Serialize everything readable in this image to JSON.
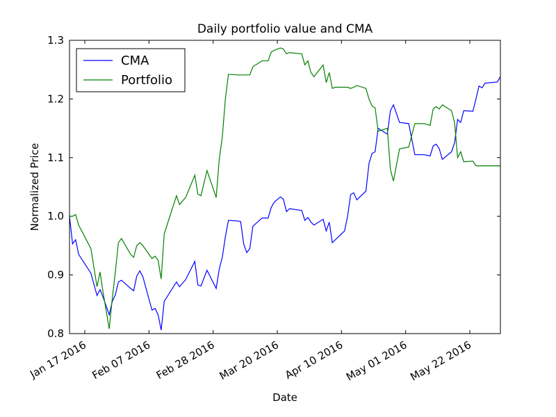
{
  "chart_data": {
    "type": "line",
    "title": "Daily portfolio value and CMA",
    "x_label": "Date",
    "y_label": "Normalized Price",
    "x": [
      "2016-01-12",
      "2016-01-13",
      "2016-01-14",
      "2016-01-15",
      "2016-01-19",
      "2016-01-21",
      "2016-01-22",
      "2016-01-23",
      "2016-01-25",
      "2016-01-26",
      "2016-01-27",
      "2016-01-28",
      "2016-01-29",
      "2016-02-01",
      "2016-02-02",
      "2016-02-03",
      "2016-02-04",
      "2016-02-05",
      "2016-02-08",
      "2016-02-09",
      "2016-02-10",
      "2016-02-11",
      "2016-02-12",
      "2016-02-16",
      "2016-02-17",
      "2016-02-19",
      "2016-02-22",
      "2016-02-23",
      "2016-02-24",
      "2016-02-26",
      "2016-02-29",
      "2016-03-01",
      "2016-03-02",
      "2016-03-03",
      "2016-03-04",
      "2016-03-07",
      "2016-03-08",
      "2016-03-09",
      "2016-03-10",
      "2016-03-11",
      "2016-03-12",
      "2016-03-15",
      "2016-03-17",
      "2016-03-18",
      "2016-03-19",
      "2016-03-21",
      "2016-03-22",
      "2016-03-23",
      "2016-03-24",
      "2016-03-28",
      "2016-03-29",
      "2016-03-30",
      "2016-03-31",
      "2016-04-01",
      "2016-04-04",
      "2016-04-05",
      "2016-04-06",
      "2016-04-07",
      "2016-04-08",
      "2016-04-11",
      "2016-04-12",
      "2016-04-13",
      "2016-04-14",
      "2016-04-15",
      "2016-04-18",
      "2016-04-19",
      "2016-04-20",
      "2016-04-21",
      "2016-04-22",
      "2016-04-25",
      "2016-04-26",
      "2016-04-27",
      "2016-04-29",
      "2016-05-02",
      "2016-05-04",
      "2016-05-07",
      "2016-05-09",
      "2016-05-10",
      "2016-05-11",
      "2016-05-12",
      "2016-05-13",
      "2016-05-16",
      "2016-05-17",
      "2016-05-18",
      "2016-05-19",
      "2016-05-20",
      "2016-05-23",
      "2016-05-24",
      "2016-05-25",
      "2016-05-26",
      "2016-05-27",
      "2016-05-31",
      "2016-06-01"
    ],
    "series": [
      {
        "name": "CMA",
        "color": "#0000ff",
        "values": [
          1.0,
          0.953,
          0.96,
          0.935,
          0.903,
          0.865,
          0.875,
          0.862,
          0.832,
          0.855,
          0.866,
          0.888,
          0.891,
          0.877,
          0.873,
          0.898,
          0.907,
          0.897,
          0.84,
          0.843,
          0.832,
          0.806,
          0.855,
          0.888,
          0.88,
          0.892,
          0.923,
          0.883,
          0.881,
          0.908,
          0.877,
          0.91,
          0.93,
          0.965,
          0.993,
          0.992,
          0.991,
          0.953,
          0.938,
          0.945,
          0.983,
          0.997,
          0.997,
          1.015,
          1.024,
          1.033,
          1.029,
          1.008,
          1.013,
          1.01,
          0.993,
          0.998,
          0.99,
          0.985,
          0.995,
          0.975,
          0.99,
          0.955,
          0.96,
          0.975,
          1.0,
          1.037,
          1.04,
          1.028,
          1.043,
          1.09,
          1.107,
          1.11,
          1.15,
          1.14,
          1.18,
          1.19,
          1.16,
          1.158,
          1.105,
          1.105,
          1.103,
          1.12,
          1.123,
          1.115,
          1.097,
          1.11,
          1.125,
          1.165,
          1.16,
          1.18,
          1.179,
          1.2,
          1.222,
          1.219,
          1.227,
          1.229,
          1.238
        ]
      },
      {
        "name": "Portfolio",
        "color": "#008000",
        "values": [
          1.0,
          1.0,
          1.003,
          0.985,
          0.945,
          0.88,
          0.905,
          0.87,
          0.808,
          0.86,
          0.905,
          0.955,
          0.962,
          0.935,
          0.93,
          0.95,
          0.955,
          0.95,
          0.928,
          0.932,
          0.925,
          0.893,
          0.97,
          1.035,
          1.02,
          1.032,
          1.07,
          1.038,
          1.035,
          1.078,
          1.032,
          1.097,
          1.135,
          1.2,
          1.242,
          1.241,
          1.241,
          1.241,
          1.241,
          1.241,
          1.255,
          1.265,
          1.265,
          1.28,
          1.283,
          1.287,
          1.285,
          1.277,
          1.279,
          1.277,
          1.258,
          1.265,
          1.245,
          1.238,
          1.258,
          1.228,
          1.245,
          1.218,
          1.22,
          1.22,
          1.22,
          1.218,
          1.22,
          1.223,
          1.218,
          1.2,
          1.188,
          1.185,
          1.145,
          1.15,
          1.08,
          1.06,
          1.115,
          1.118,
          1.158,
          1.158,
          1.155,
          1.183,
          1.187,
          1.183,
          1.19,
          1.18,
          1.16,
          1.1,
          1.11,
          1.093,
          1.094,
          1.086,
          1.086,
          1.086,
          1.086,
          1.086,
          1.086
        ]
      }
    ],
    "xlim": [
      "2016-01-12",
      "2016-06-01"
    ],
    "xticks": [
      {
        "value": "2016-01-17",
        "label": "Jan 17 2016"
      },
      {
        "value": "2016-02-07",
        "label": "Feb 07 2016"
      },
      {
        "value": "2016-02-28",
        "label": "Feb 28 2016"
      },
      {
        "value": "2016-03-20",
        "label": "Mar 20 2016"
      },
      {
        "value": "2016-04-10",
        "label": "Apr 10 2016"
      },
      {
        "value": "2016-05-01",
        "label": "May 01 2016"
      },
      {
        "value": "2016-05-22",
        "label": "May 22 2016"
      }
    ],
    "ylim": [
      0.8,
      1.3
    ],
    "yticks": [
      0.8,
      0.9,
      {
        "value": 1.0,
        "label": "1.0"
      },
      1.1,
      1.2,
      1.3
    ],
    "legend": "upper left",
    "grid": false
  }
}
